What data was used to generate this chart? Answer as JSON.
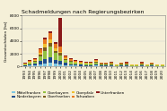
{
  "title": "Schadmeldungen nach Regierungsbezirken",
  "ylabel": "Gesamtschäden [ha]",
  "background_color": "#f5f0d8",
  "years": [
    "1993",
    "1994",
    "1995",
    "1996",
    "1997",
    "1998",
    "1999",
    "2000",
    "2001",
    "2002",
    "2003",
    "2004",
    "2005",
    "2006",
    "2007",
    "2008",
    "2009",
    "2010",
    "2011",
    "2012",
    "2013",
    "2014",
    "2015",
    "2016",
    "2017",
    "2018",
    "2019",
    "2020"
  ],
  "regions": {
    "Mittelfranken": [
      80,
      150,
      200,
      400,
      500,
      600,
      450,
      400,
      250,
      150,
      150,
      100,
      100,
      100,
      150,
      80,
      80,
      80,
      40,
      80,
      80,
      40,
      40,
      80,
      40,
      80,
      40,
      40
    ],
    "Niederbayern": [
      100,
      200,
      250,
      500,
      700,
      800,
      550,
      500,
      300,
      250,
      180,
      180,
      130,
      150,
      250,
      150,
      150,
      150,
      80,
      120,
      120,
      80,
      80,
      120,
      80,
      150,
      80,
      80
    ],
    "Oberbayern": [
      120,
      200,
      350,
      700,
      1300,
      1800,
      1100,
      900,
      420,
      300,
      220,
      180,
      180,
      180,
      220,
      130,
      130,
      170,
      80,
      130,
      170,
      80,
      80,
      170,
      80,
      130,
      80,
      80
    ],
    "Oberfranken": [
      80,
      120,
      80,
      250,
      450,
      450,
      350,
      300,
      170,
      130,
      130,
      80,
      80,
      80,
      130,
      80,
      80,
      80,
      40,
      80,
      80,
      40,
      40,
      80,
      40,
      80,
      40,
      40
    ],
    "Oberpfalz": [
      80,
      120,
      120,
      350,
      550,
      650,
      450,
      200,
      170,
      130,
      80,
      80,
      80,
      80,
      130,
      80,
      80,
      80,
      40,
      80,
      80,
      40,
      40,
      80,
      40,
      80,
      40,
      40
    ],
    "Schwaben": [
      80,
      150,
      170,
      500,
      800,
      900,
      650,
      800,
      260,
      170,
      130,
      130,
      80,
      80,
      170,
      80,
      80,
      80,
      40,
      80,
      80,
      40,
      40,
      80,
      40,
      80,
      40,
      40
    ],
    "Unterfranken": [
      80,
      120,
      80,
      170,
      260,
      350,
      260,
      4500,
      170,
      130,
      80,
      80,
      80,
      80,
      130,
      80,
      80,
      80,
      40,
      80,
      80,
      40,
      40,
      80,
      40,
      80,
      40,
      40
    ]
  },
  "colors": {
    "Mittelfranken": "#7ec8e3",
    "Niederbayern": "#1f4e8c",
    "Oberbayern": "#92c040",
    "Oberfranken": "#7b5a1e",
    "Oberpfalz": "#f0c030",
    "Schwaben": "#e87820",
    "Unterfranken": "#8b1a1a"
  },
  "ylim": [
    0,
    8000
  ],
  "yticks": [
    0,
    2000,
    4000,
    6000,
    8000
  ]
}
